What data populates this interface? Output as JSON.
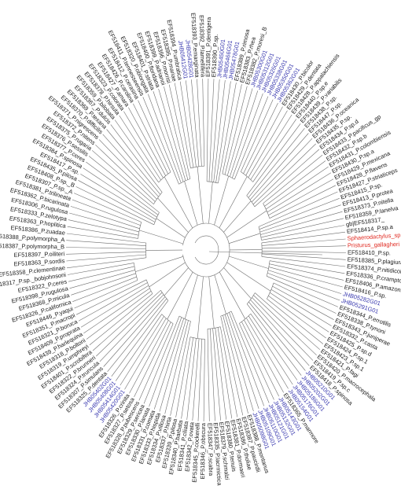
{
  "colors": {
    "branch": "#6b6b6b",
    "leaf": "#1a1a1a",
    "highlight": "#3b3bb0",
    "outgroup": "#e0281f"
  },
  "tree": {
    "leaves": [
      {
        "label": "EF518414_P.sp.a",
        "group": "black"
      },
      {
        "label": "Sphaerodactylus_sp.",
        "group": "red"
      },
      {
        "label": "Pristurus_gallagheri",
        "group": "red"
      },
      {
        "label": "EF518410_P.sp.",
        "group": "black"
      },
      {
        "label": "EF518385_P.plagiura",
        "group": "black"
      },
      {
        "label": "EF518374_P.nitidicollis",
        "group": "black"
      },
      {
        "label": "EF518336_P.crampton",
        "group": "black"
      },
      {
        "label": "EF518406_P.amazonica",
        "group": "black"
      },
      {
        "label": "EF518416_P.sp.",
        "group": "black"
      },
      {
        "label": "JHB05282G01",
        "group": "blue"
      },
      {
        "label": "JHB05291G01",
        "group": "blue"
      },
      {
        "label": "EF518344_P.errotilis",
        "group": "black"
      },
      {
        "label": "EF518338_P.tynoni",
        "group": "black"
      },
      {
        "label": "EF518343_P.juniperae",
        "group": "black"
      },
      {
        "label": "EF518332_P.casta",
        "group": "black"
      },
      {
        "label": "EF518425_P.sp.d",
        "group": "black"
      },
      {
        "label": "EF518424_P.sp.1",
        "group": "black"
      },
      {
        "label": "EF518423_P.sp.1",
        "group": "black"
      },
      {
        "label": "EF518421_P.fagi",
        "group": "black"
      },
      {
        "label": "EF518420_P.macrocephala",
        "group": "black"
      },
      {
        "label": "EF518419_P.sp.c",
        "group": "black"
      },
      {
        "label": "EF518418_P.spinosa",
        "group": "black"
      },
      {
        "label": "JHB05210G01",
        "group": "blue"
      },
      {
        "label": "JHB05202G01",
        "group": "blue"
      },
      {
        "label": "JHB05186G01",
        "group": "blue"
      },
      {
        "label": "JHB05176G01",
        "group": "blue"
      },
      {
        "label": "JHB05154G01",
        "group": "blue"
      },
      {
        "label": "EF518365_P.marmore",
        "group": "black"
      },
      {
        "label": "JHB05143G01",
        "group": "blue"
      },
      {
        "label": "JHB05132G01",
        "group": "blue"
      },
      {
        "label": "JHB05121G01",
        "group": "blue"
      },
      {
        "label": "JHB05110G01",
        "group": "blue"
      },
      {
        "label": "JHB05109G01",
        "group": "blue"
      },
      {
        "label": "JHB05098G01",
        "group": "blue"
      },
      {
        "label": "EF518388_P.montanus",
        "group": "black"
      },
      {
        "label": "EF518387_P.paucirdii",
        "group": "black"
      },
      {
        "label": "EF518386_P.tholiae",
        "group": "black"
      },
      {
        "label": "EF518381_P.dormaeri",
        "group": "black"
      },
      {
        "label": "EF518380_P.tenuis",
        "group": "black"
      },
      {
        "label": "EF518379_P.schmalzi",
        "group": "black"
      },
      {
        "label": "EF518335_P.lacrmictica",
        "group": "black"
      },
      {
        "label": "EF518347_P.scabra",
        "group": "black"
      },
      {
        "label": "EF518346_P.obscura",
        "group": "black"
      },
      {
        "label": "EF518345_P.cockerelli",
        "group": "black"
      },
      {
        "label": "EF518342_P.ovata",
        "group": "black"
      },
      {
        "label": "EF518341_P.ciliata",
        "group": "black"
      },
      {
        "label": "EF518340_P.barbata",
        "group": "black"
      },
      {
        "label": "EF518339_P.pilosa",
        "group": "black"
      },
      {
        "label": "EF518337_P.hirta",
        "group": "black"
      },
      {
        "label": "EF518334_P.villosa",
        "group": "black"
      },
      {
        "label": "EF518333_P.hispida",
        "group": "black"
      },
      {
        "label": "EF518331_P.comata",
        "group": "black"
      },
      {
        "label": "EF518330_P.lanata",
        "group": "black"
      },
      {
        "label": "EF518329_P.sericea",
        "group": "black"
      },
      {
        "label": "EF518328_P.pubescens",
        "group": "black"
      },
      {
        "label": "EF518327_P.setosa",
        "group": "black"
      },
      {
        "label": "EF518326_P.crinita",
        "group": "black"
      },
      {
        "label": "JHB05420G01",
        "group": "blue"
      },
      {
        "label": "JHB05414G01",
        "group": "blue"
      },
      {
        "label": "JHB05408G01",
        "group": "blue"
      },
      {
        "label": "JHB05402G01",
        "group": "blue"
      },
      {
        "label": "EF518325_P.dentata",
        "group": "black"
      },
      {
        "label": "EF518307_P.simulans",
        "group": "black"
      },
      {
        "label": "EF518324_P.truncula",
        "group": "black"
      },
      {
        "label": "EF518322_P.brunneri",
        "group": "black"
      },
      {
        "label": "EF518401_P.scrobifera",
        "group": "black"
      },
      {
        "label": "EF518319_P.umphreyi",
        "group": "black"
      },
      {
        "label": "EF518318_P.boltoni",
        "group": "black"
      },
      {
        "label": "EF518439_P.harlequina",
        "group": "black"
      },
      {
        "label": "EF518409_P.proprata",
        "group": "black"
      },
      {
        "label": "EF518321_P.boruca",
        "group": "black"
      },
      {
        "label": "EF518351_P.macropi",
        "group": "black"
      },
      {
        "label": "EF518446_P.yaqui",
        "group": "black"
      },
      {
        "label": "EF518326_P.californica",
        "group": "black"
      },
      {
        "label": "EF518368_P.micula",
        "group": "black"
      },
      {
        "label": "EF518398_P.rugulosa",
        "group": "black"
      },
      {
        "label": "EF518322_P.ceres",
        "group": "black"
      },
      {
        "label": "EF518317_P.sp._bobjohnsoni",
        "group": "black"
      },
      {
        "label": "EF518358_P.clementinae",
        "group": "black"
      },
      {
        "label": "EF518363_P.sordis",
        "group": "black"
      },
      {
        "label": "EF518397_P.oiliteri",
        "group": "black"
      },
      {
        "label": "EF518387_P.polymorpha_B",
        "group": "black"
      },
      {
        "label": "EF518388_P.polymorpha_A",
        "group": "black"
      },
      {
        "label": "EF518386_P.zuadae",
        "group": "black"
      },
      {
        "label": "EF518363_P.hoplitica",
        "group": "black"
      },
      {
        "label": "EF518333_P.zelotypa",
        "group": "black"
      },
      {
        "label": "EF518306_P.rugulosa",
        "group": "black"
      },
      {
        "label": "EF518362_P.bicarinata",
        "group": "black"
      },
      {
        "label": "EF518381_P.trilineata",
        "group": "black"
      },
      {
        "label": "EF518307_P.sp._A",
        "group": "black"
      },
      {
        "label": "EF518408_P.sp._B",
        "group": "black"
      },
      {
        "label": "EF518435_P.pilosa",
        "group": "black"
      },
      {
        "label": "EF518417_P.sp.",
        "group": "black"
      },
      {
        "label": "EF518384_P.spinosa",
        "group": "black"
      },
      {
        "label": "EF518377_P.ceres",
        "group": "black"
      },
      {
        "label": "EF518376_P.sessilis",
        "group": "black"
      },
      {
        "label": "EF518375_P.rugaria",
        "group": "black"
      },
      {
        "label": "EF518372_P.nitens",
        "group": "black"
      },
      {
        "label": "EF518371_P.nigrescens",
        "group": "black"
      },
      {
        "label": "EF518370_P.difficilis",
        "group": "black"
      },
      {
        "label": "EF518369_P.texana",
        "group": "black"
      },
      {
        "label": "EF518367_P.dulcis",
        "group": "black"
      },
      {
        "label": "EF518359_P.bilobata",
        "group": "black"
      },
      {
        "label": "EF518378_P.hirsuta",
        "group": "black"
      },
      {
        "label": "EF518323_P.colorata",
        "group": "black"
      },
      {
        "label": "EF518427_P.amara",
        "group": "black"
      },
      {
        "label": "EF518426_P.carolina",
        "group": "black"
      },
      {
        "label": "EF518412_P.cerasina",
        "group": "black"
      },
      {
        "label": "EF518411_P.tennesseensis",
        "group": "black"
      },
      {
        "label": "EF518320_P.oblongata",
        "group": "black"
      },
      {
        "label": "EF518401_P.striata",
        "group": "black"
      },
      {
        "label": "EF518400_P.floridana",
        "group": "black"
      },
      {
        "label": "EF518399_P.adrianoi",
        "group": "black"
      },
      {
        "label": "EF518396_P.morrisi",
        "group": "black"
      },
      {
        "label": "EF518395_P.mariae",
        "group": "black"
      },
      {
        "label": "EF518394_P.umbratica",
        "group": "black"
      },
      {
        "label": "JHB05412G01",
        "group": "blue"
      },
      {
        "label": "JHB05428G01",
        "group": "blue"
      },
      {
        "label": "EF518393_P.emarginata",
        "group": "black"
      },
      {
        "label": "EF518392_P.lamellifera",
        "group": "black"
      },
      {
        "label": "EF518391_P.dentigera",
        "group": "black"
      },
      {
        "label": "EF518390_P.sp.",
        "group": "black"
      },
      {
        "label": "JHB05450G01",
        "group": "blue"
      },
      {
        "label": "JHB05466G01",
        "group": "blue"
      },
      {
        "label": "JHB05478G01",
        "group": "blue"
      },
      {
        "label": "EF518389_P.rimosa",
        "group": "black"
      },
      {
        "label": "EF518383_P.rhea",
        "group": "black"
      },
      {
        "label": "EF518382_P.moresi_B",
        "group": "black"
      },
      {
        "label": "JHB05300G01",
        "group": "blue"
      },
      {
        "label": "JHB05312G01",
        "group": "blue"
      },
      {
        "label": "JHB05326G01",
        "group": "blue"
      },
      {
        "label": "JHB05338G01",
        "group": "blue"
      },
      {
        "label": "JHB05350G01",
        "group": "blue"
      },
      {
        "label": "JHB05362G01",
        "group": "blue"
      },
      {
        "label": "EF518430_P.bicolor",
        "group": "black"
      },
      {
        "label": "EF518429_P.dentata",
        "group": "black"
      },
      {
        "label": "EF518428_P.appalachiensis",
        "group": "black"
      },
      {
        "label": "EF518440_P.sp.e",
        "group": "black"
      },
      {
        "label": "EF518439_P.variabilis",
        "group": "black"
      },
      {
        "label": "EF518438_P.sp.",
        "group": "black"
      },
      {
        "label": "EF518447_P.sp.",
        "group": "black"
      },
      {
        "label": "EF518436_P.oceanica",
        "group": "black"
      },
      {
        "label": "EF518435_P.sp.",
        "group": "black"
      },
      {
        "label": "EF518434_P.sp.d",
        "group": "black"
      },
      {
        "label": "EF518433_P.pacificus_gp",
        "group": "black"
      },
      {
        "label": "EF518432_P.sp.b",
        "group": "black"
      },
      {
        "label": "EF518431_P.colombiensis",
        "group": "black"
      },
      {
        "label": "EF518430_P.sp.a",
        "group": "black"
      },
      {
        "label": "EF518429_P.mexicana",
        "group": "black"
      },
      {
        "label": "EF518428_P.flavens",
        "group": "black"
      },
      {
        "label": "EF518427_P.striaticeps",
        "group": "black"
      },
      {
        "label": "EF518415_P.sp.",
        "group": "black"
      },
      {
        "label": "EF518413_P.protea",
        "group": "black"
      },
      {
        "label": "EF518373_P.nitella",
        "group": "black"
      },
      {
        "label": "EF518359_P.lanelva",
        "group": "black"
      },
      {
        "label": "gb|EF518317_",
        "group": "black"
      }
    ]
  }
}
